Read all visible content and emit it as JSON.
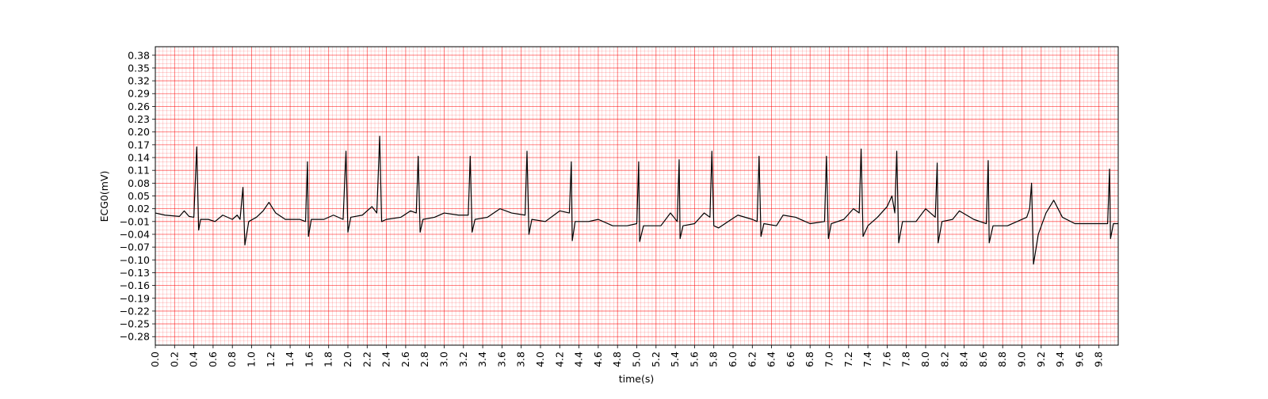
{
  "chart_data": {
    "type": "line",
    "xlabel": "time(s)",
    "ylabel": "ECG0(mV)",
    "color": "#000000",
    "grid": true,
    "grid_color": "#ff0000",
    "xlim": [
      0,
      10
    ],
    "ylim": [
      -0.3,
      0.4
    ],
    "xticks": [
      {
        "value": 0,
        "label": "0.0"
      },
      0.2,
      0.4,
      0.6,
      0.8,
      {
        "value": 1,
        "label": "1.0"
      },
      1.2,
      1.4,
      1.6,
      1.8,
      {
        "value": 2,
        "label": "2.0"
      },
      2.2,
      2.4,
      2.6,
      2.8,
      {
        "value": 3,
        "label": "3.0"
      },
      3.2,
      3.4,
      3.6,
      3.8,
      {
        "value": 4,
        "label": "4.0"
      },
      4.2,
      4.4,
      4.6,
      4.8,
      {
        "value": 5,
        "label": "5.0"
      },
      5.2,
      5.4,
      5.6,
      5.8,
      {
        "value": 6,
        "label": "6.0"
      },
      6.2,
      6.4,
      6.6,
      6.8,
      {
        "value": 7,
        "label": "7.0"
      },
      7.2,
      7.4,
      7.6,
      7.8,
      {
        "value": 8,
        "label": "8.0"
      },
      8.2,
      8.4,
      8.6,
      8.8,
      {
        "value": 9,
        "label": "9.0"
      },
      9.2,
      9.4,
      9.6,
      9.8
    ],
    "yticks": [
      {
        "value": -0.28,
        "label": "−0.28"
      },
      {
        "value": -0.25,
        "label": "−0.25"
      },
      {
        "value": -0.22,
        "label": "−0.22"
      },
      {
        "value": -0.19,
        "label": "−0.19"
      },
      {
        "value": -0.16,
        "label": "−0.16"
      },
      {
        "value": -0.13,
        "label": "−0.13"
      },
      {
        "value": -0.1,
        "label": "−0.10"
      },
      {
        "value": -0.07,
        "label": "−0.07"
      },
      {
        "value": -0.04,
        "label": "−0.04"
      },
      {
        "value": -0.01,
        "label": "−0.01"
      },
      0.02,
      0.05,
      0.08,
      0.11,
      0.14,
      0.17,
      {
        "value": 0.2,
        "label": "0.20"
      },
      0.23,
      0.26,
      0.29,
      0.32,
      0.35,
      0.38
    ],
    "x": [
      0,
      0.1,
      0.25,
      0.3,
      0.35,
      0.4,
      0.43,
      0.45,
      0.47,
      0.55,
      0.62,
      0.7,
      0.8,
      0.85,
      0.88,
      0.91,
      0.93,
      0.97,
      1.05,
      1.12,
      1.18,
      1.25,
      1.35,
      1.5,
      1.56,
      1.58,
      1.59,
      1.62,
      1.75,
      1.85,
      1.95,
      1.98,
      2,
      2.03,
      2.15,
      2.25,
      2.3,
      2.33,
      2.35,
      2.4,
      2.55,
      2.65,
      2.71,
      2.73,
      2.75,
      2.78,
      2.9,
      3,
      3.15,
      3.25,
      3.27,
      3.29,
      3.32,
      3.45,
      3.58,
      3.7,
      3.84,
      3.86,
      3.88,
      3.91,
      4.05,
      4.2,
      4.3,
      4.32,
      4.33,
      4.36,
      4.5,
      4.6,
      4.75,
      4.9,
      5,
      5.02,
      5.03,
      5.07,
      5.25,
      5.35,
      5.42,
      5.44,
      5.45,
      5.48,
      5.6,
      5.7,
      5.76,
      5.78,
      5.8,
      5.85,
      5.95,
      6.05,
      6.2,
      6.25,
      6.27,
      6.29,
      6.32,
      6.45,
      6.52,
      6.65,
      6.8,
      6.95,
      6.97,
      6.99,
      7.02,
      7.15,
      7.25,
      7.31,
      7.33,
      7.35,
      7.4,
      7.5,
      7.6,
      7.65,
      7.68,
      7.7,
      7.72,
      7.76,
      7.9,
      8,
      8.1,
      8.12,
      8.13,
      8.17,
      8.28,
      8.35,
      8.5,
      8.63,
      8.65,
      8.66,
      8.7,
      8.85,
      8.95,
      9.05,
      9.08,
      9.1,
      9.12,
      9.17,
      9.25,
      9.33,
      9.42,
      9.55,
      9.7,
      9.85,
      9.89,
      9.91,
      9.92,
      9.95,
      10
    ],
    "values": [
      0.01,
      0.005,
      0.002,
      0.015,
      0.002,
      0,
      0.165,
      -0.03,
      -0.005,
      -0.005,
      -0.01,
      0.005,
      -0.005,
      0.005,
      -0.005,
      0.07,
      -0.065,
      -0.01,
      0,
      0.015,
      0.035,
      0.01,
      -0.005,
      -0.005,
      -0.01,
      0.13,
      -0.045,
      -0.005,
      -0.005,
      0.005,
      -0.005,
      0.155,
      -0.035,
      0,
      0.005,
      0.025,
      0.01,
      0.19,
      -0.01,
      -0.005,
      0,
      0.015,
      0.01,
      0.143,
      -0.035,
      -0.005,
      0,
      0.01,
      0.005,
      0.005,
      0.143,
      -0.035,
      -0.005,
      0,
      0.02,
      0.01,
      0.005,
      0.155,
      -0.04,
      -0.005,
      -0.01,
      0.015,
      0.01,
      0.13,
      -0.055,
      -0.01,
      -0.01,
      -0.005,
      -0.02,
      -0.02,
      -0.015,
      0.13,
      -0.057,
      -0.02,
      -0.02,
      0.01,
      -0.01,
      0.135,
      -0.05,
      -0.02,
      -0.015,
      0.01,
      0,
      0.155,
      -0.02,
      -0.025,
      -0.01,
      0.005,
      -0.005,
      -0.01,
      0.143,
      -0.045,
      -0.015,
      -0.02,
      0.005,
      0,
      -0.015,
      -0.01,
      0.143,
      -0.05,
      -0.015,
      -0.005,
      0.02,
      0.01,
      0.16,
      -0.045,
      -0.02,
      0,
      0.025,
      0.05,
      0.01,
      0.155,
      -0.06,
      -0.01,
      -0.01,
      0.02,
      0,
      0.127,
      -0.06,
      -0.01,
      -0.005,
      0.015,
      -0.005,
      -0.015,
      0.133,
      -0.06,
      -0.02,
      -0.02,
      -0.01,
      0,
      0.02,
      0.08,
      -0.11,
      -0.04,
      0.01,
      0.04,
      0,
      -0.015,
      -0.015,
      -0.015,
      -0.015,
      0.113,
      -0.05,
      -0.015,
      -0.015
    ]
  }
}
